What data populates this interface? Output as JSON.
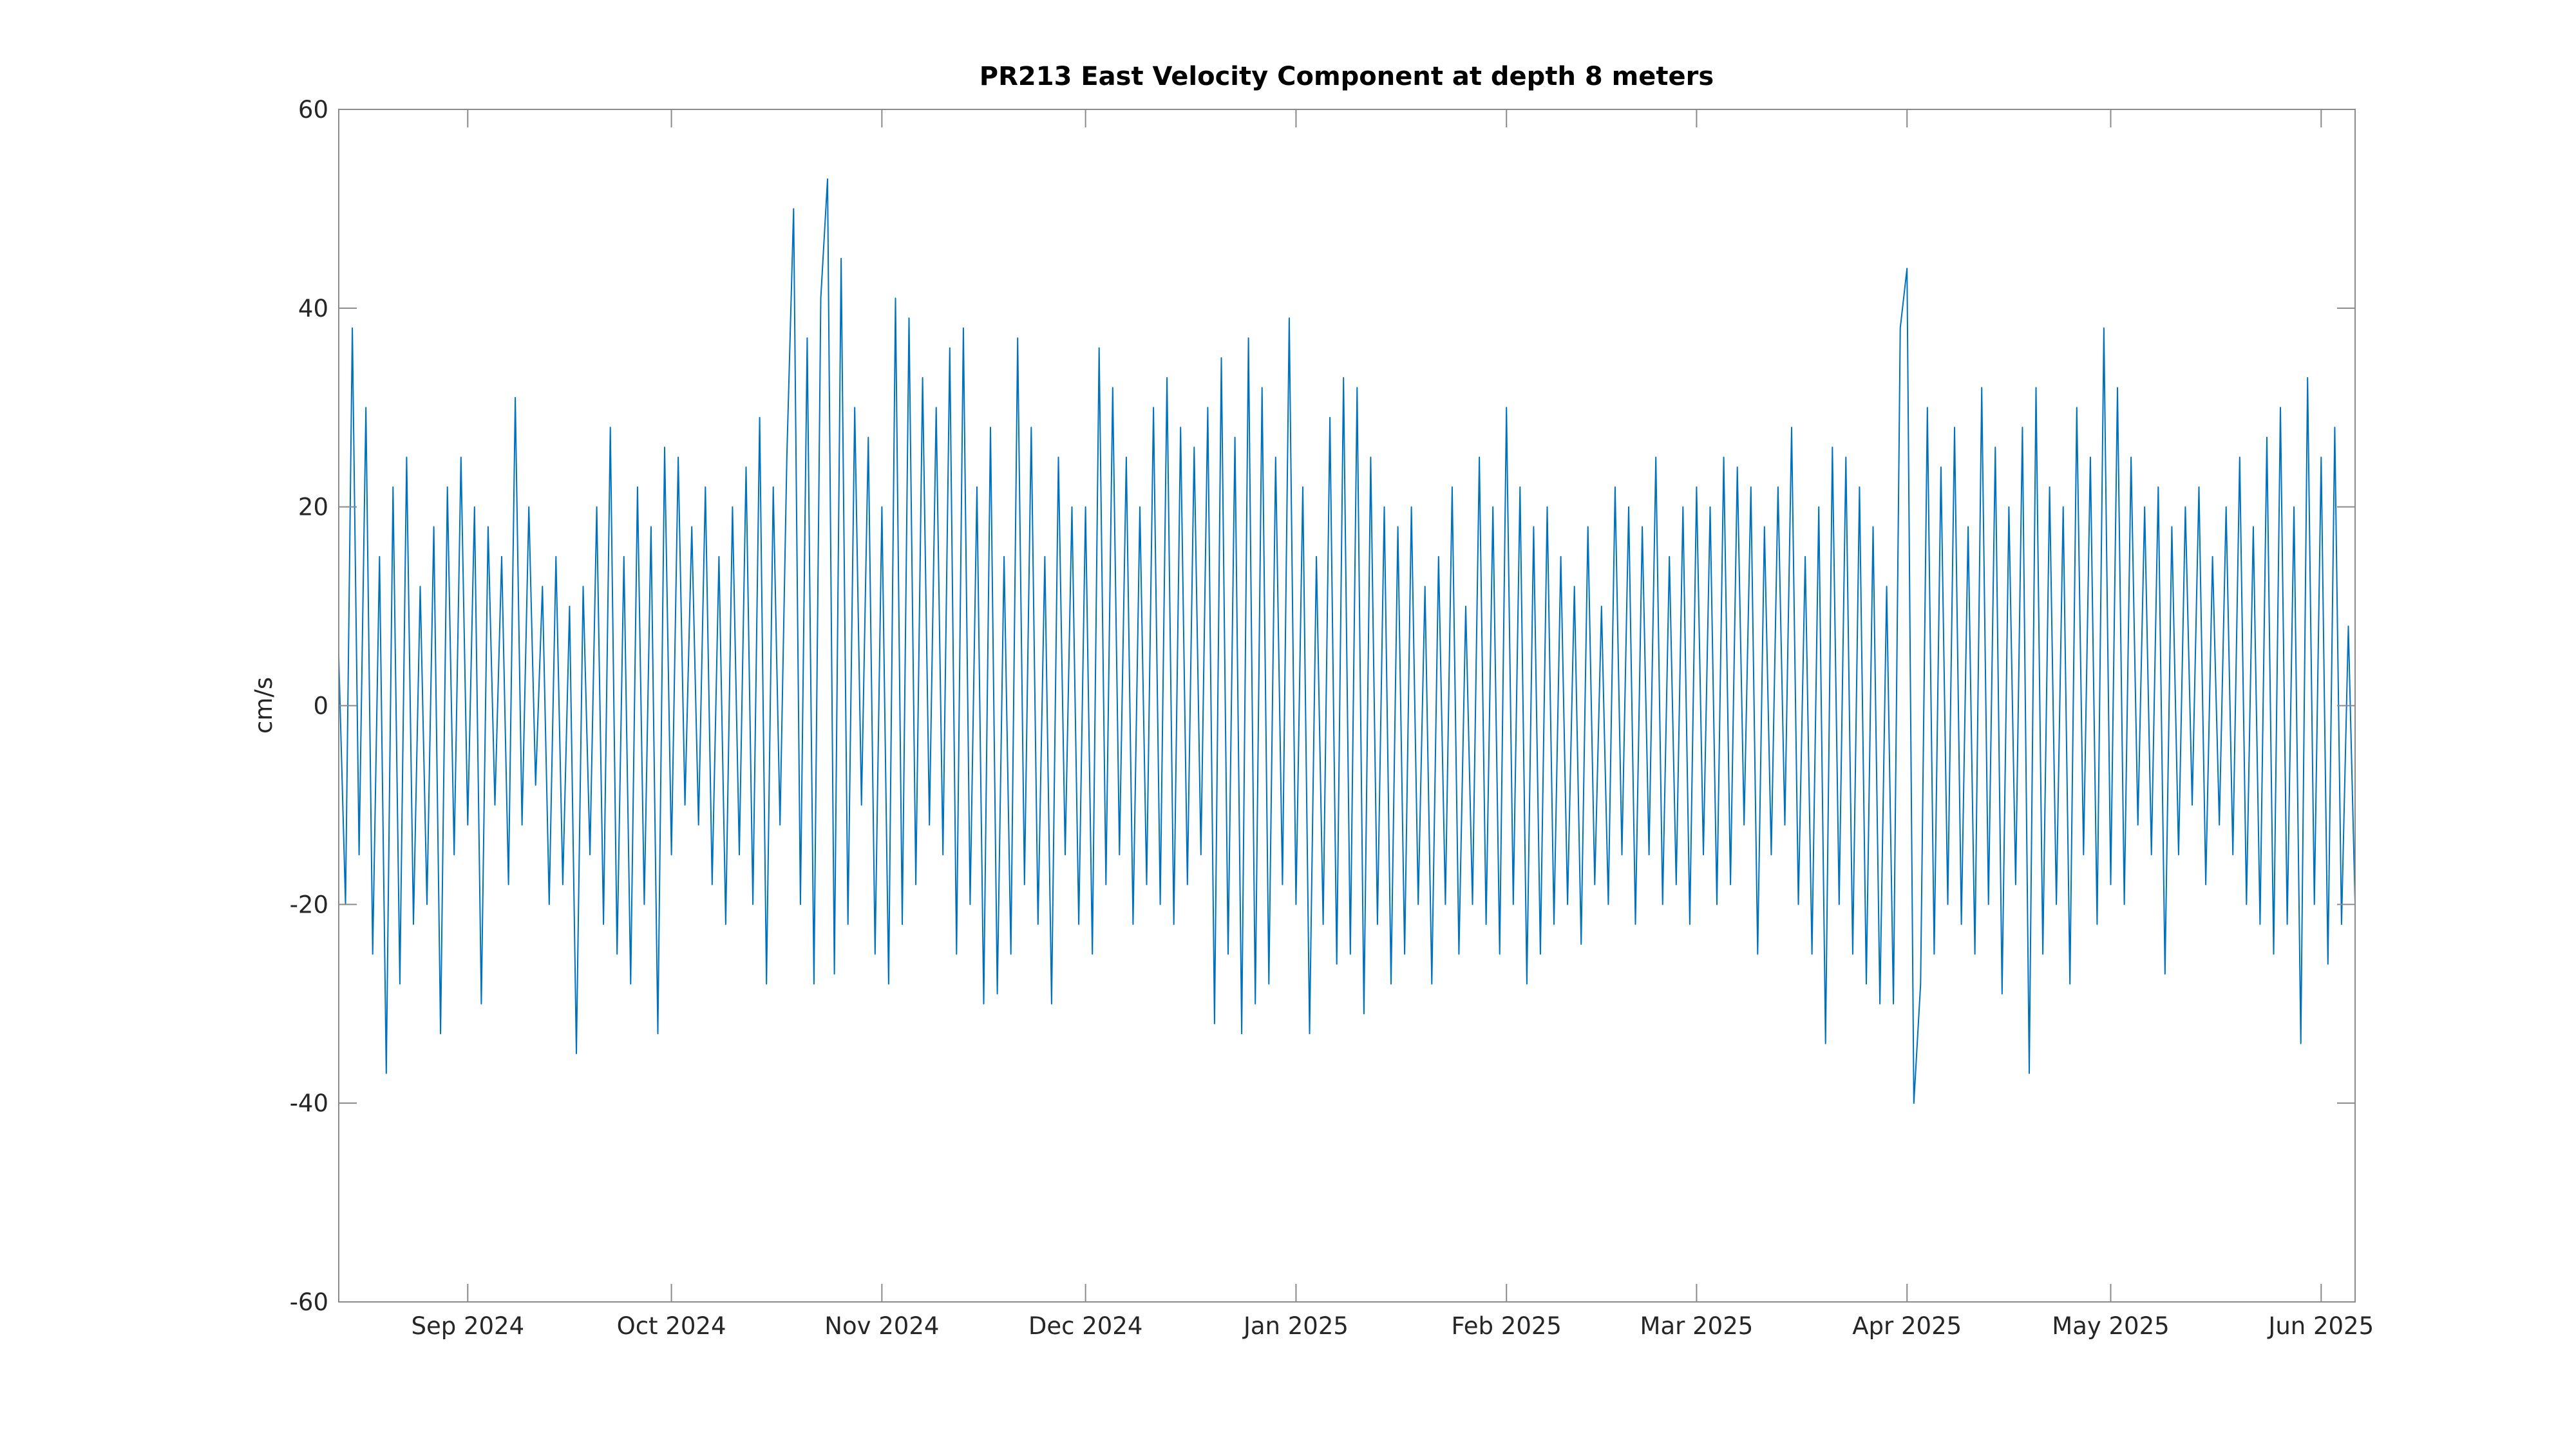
{
  "chart_data": {
    "type": "line",
    "title": "PR213 East Velocity Component at depth 8 meters",
    "ylabel": "cm/s",
    "color": "#0072bd",
    "xlim": [
      0,
      297
    ],
    "xticks": [
      {
        "value": 19,
        "label": "Sep 2024"
      },
      {
        "value": 49,
        "label": "Oct 2024"
      },
      {
        "value": 80,
        "label": "Nov 2024"
      },
      {
        "value": 110,
        "label": "Dec 2024"
      },
      {
        "value": 141,
        "label": "Jan 2025"
      },
      {
        "value": 172,
        "label": "Feb 2025"
      },
      {
        "value": 200,
        "label": "Mar 2025"
      },
      {
        "value": 231,
        "label": "Apr 2025"
      },
      {
        "value": 261,
        "label": "May 2025"
      },
      {
        "value": 292,
        "label": "Jun 2025"
      }
    ],
    "ylim": [
      -60,
      60
    ],
    "yticks": [
      -60,
      -40,
      -20,
      0,
      20,
      40,
      60
    ],
    "x": [
      0,
      1,
      2,
      3,
      4,
      5,
      6,
      7,
      8,
      9,
      10,
      11,
      12,
      13,
      14,
      15,
      16,
      17,
      18,
      19,
      20,
      21,
      22,
      23,
      24,
      25,
      26,
      27,
      28,
      29,
      30,
      31,
      32,
      33,
      34,
      35,
      36,
      37,
      38,
      39,
      40,
      41,
      42,
      43,
      44,
      45,
      46,
      47,
      48,
      49,
      50,
      51,
      52,
      53,
      54,
      55,
      56,
      57,
      58,
      59,
      60,
      61,
      62,
      63,
      64,
      65,
      66,
      67,
      68,
      69,
      70,
      71,
      72,
      73,
      74,
      75,
      76,
      77,
      78,
      79,
      80,
      81,
      82,
      83,
      84,
      85,
      86,
      87,
      88,
      89,
      90,
      91,
      92,
      93,
      94,
      95,
      96,
      97,
      98,
      99,
      100,
      101,
      102,
      103,
      104,
      105,
      106,
      107,
      108,
      109,
      110,
      111,
      112,
      113,
      114,
      115,
      116,
      117,
      118,
      119,
      120,
      121,
      122,
      123,
      124,
      125,
      126,
      127,
      128,
      129,
      130,
      131,
      132,
      133,
      134,
      135,
      136,
      137,
      138,
      139,
      140,
      141,
      142,
      143,
      144,
      145,
      146,
      147,
      148,
      149,
      150,
      151,
      152,
      153,
      154,
      155,
      156,
      157,
      158,
      159,
      160,
      161,
      162,
      163,
      164,
      165,
      166,
      167,
      168,
      169,
      170,
      171,
      172,
      173,
      174,
      175,
      176,
      177,
      178,
      179,
      180,
      181,
      182,
      183,
      184,
      185,
      186,
      187,
      188,
      189,
      190,
      191,
      192,
      193,
      194,
      195,
      196,
      197,
      198,
      199,
      200,
      201,
      202,
      203,
      204,
      205,
      206,
      207,
      208,
      209,
      210,
      211,
      212,
      213,
      214,
      215,
      216,
      217,
      218,
      219,
      220,
      221,
      222,
      223,
      224,
      225,
      226,
      227,
      228,
      229,
      230,
      231,
      232,
      233,
      234,
      235,
      236,
      237,
      238,
      239,
      240,
      241,
      242,
      243,
      244,
      245,
      246,
      247,
      248,
      249,
      250,
      251,
      252,
      253,
      254,
      255,
      256,
      257,
      258,
      259,
      260,
      261,
      262,
      263,
      264,
      265,
      266,
      267,
      268,
      269,
      270,
      271,
      272,
      273,
      274,
      275,
      276,
      277,
      278,
      279,
      280,
      281,
      282,
      283,
      284,
      285,
      286,
      287,
      288,
      289,
      290,
      291,
      292,
      293,
      294,
      295,
      296,
      297
    ],
    "values": [
      5,
      -20,
      38,
      -15,
      30,
      -25,
      15,
      -37,
      22,
      -28,
      25,
      -22,
      12,
      -20,
      18,
      -33,
      22,
      -15,
      25,
      -12,
      20,
      -30,
      18,
      -10,
      15,
      -18,
      31,
      -12,
      20,
      -8,
      12,
      -20,
      15,
      -18,
      10,
      -35,
      12,
      -15,
      20,
      -22,
      28,
      -25,
      15,
      -28,
      22,
      -20,
      18,
      -33,
      26,
      -15,
      25,
      -10,
      18,
      -12,
      22,
      -18,
      15,
      -22,
      20,
      -15,
      24,
      -20,
      29,
      -28,
      22,
      -12,
      25,
      50,
      -20,
      37,
      -28,
      41,
      53,
      -27,
      45,
      -22,
      30,
      -10,
      27,
      -25,
      20,
      -28,
      41,
      -22,
      39,
      -18,
      33,
      -12,
      30,
      -15,
      36,
      -25,
      38,
      -20,
      22,
      -30,
      28,
      -29,
      15,
      -25,
      37,
      -18,
      28,
      -22,
      15,
      -30,
      25,
      -15,
      20,
      -22,
      20,
      -25,
      36,
      -18,
      32,
      -15,
      25,
      -22,
      20,
      -18,
      30,
      -20,
      33,
      -22,
      28,
      -18,
      26,
      -15,
      30,
      -32,
      35,
      -25,
      27,
      -33,
      37,
      -30,
      32,
      -28,
      25,
      -18,
      39,
      -20,
      22,
      -33,
      15,
      -22,
      29,
      -26,
      33,
      -25,
      32,
      -31,
      25,
      -22,
      20,
      -28,
      18,
      -25,
      20,
      -20,
      12,
      -28,
      15,
      -20,
      22,
      -25,
      10,
      -20,
      25,
      -22,
      20,
      -25,
      30,
      -20,
      22,
      -28,
      18,
      -25,
      20,
      -22,
      15,
      -20,
      12,
      -24,
      18,
      -18,
      10,
      -20,
      22,
      -15,
      20,
      -22,
      18,
      -15,
      25,
      -20,
      15,
      -18,
      20,
      -22,
      22,
      -15,
      20,
      -20,
      25,
      -18,
      24,
      -12,
      22,
      -25,
      18,
      -15,
      22,
      -12,
      28,
      -20,
      15,
      -25,
      20,
      -34,
      26,
      -20,
      25,
      -25,
      22,
      -28,
      18,
      -30,
      12,
      -30,
      38,
      44,
      -40,
      -28,
      30,
      -25,
      24,
      -20,
      28,
      -22,
      18,
      -25,
      32,
      -20,
      26,
      -29,
      20,
      -18,
      28,
      -37,
      32,
      -25,
      22,
      -20,
      20,
      -28,
      30,
      -15,
      25,
      -22,
      38,
      -18,
      32,
      -20,
      25,
      -12,
      20,
      -15,
      22,
      -27,
      18,
      -15,
      20,
      -10,
      22,
      -18,
      15,
      -12,
      20,
      -15,
      25,
      -20,
      18,
      -22,
      27,
      -25,
      30,
      -22,
      20,
      -34,
      33,
      -20,
      25,
      -26,
      28,
      -22,
      8,
      -20
    ]
  }
}
